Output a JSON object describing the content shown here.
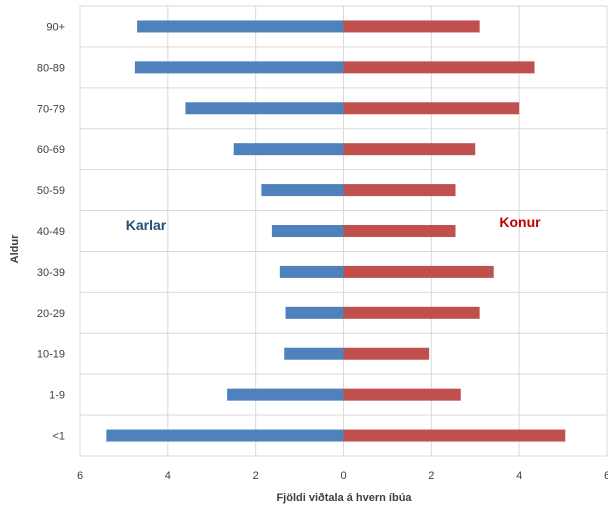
{
  "chart_data": {
    "type": "bar",
    "orientation": "horizontal",
    "layout": "population-pyramid",
    "categories": [
      "90+",
      "80-89",
      "70-79",
      "60-69",
      "50-59",
      "40-49",
      "30-39",
      "20-29",
      "10-19",
      "1-9",
      "<1"
    ],
    "series": [
      {
        "name": "Karlar",
        "side": "left",
        "color": "#4f81bd",
        "values": [
          4.7,
          4.75,
          3.6,
          2.5,
          1.87,
          1.63,
          1.45,
          1.32,
          1.35,
          2.65,
          5.4
        ]
      },
      {
        "name": "Konur",
        "side": "right",
        "color": "#c0504d",
        "values": [
          3.1,
          4.35,
          4.0,
          3.0,
          2.55,
          2.55,
          3.42,
          3.1,
          1.95,
          2.67,
          5.05
        ]
      }
    ],
    "group_labels": [
      {
        "text": "Karlar",
        "color": "#1f4e79"
      },
      {
        "text": "Konur",
        "color": "#c00000"
      }
    ],
    "xlabel": "Fjöldi viðtala á hvern íbúa",
    "ylabel": "Aldur",
    "xlim": [
      -6,
      6
    ],
    "x_ticks": [
      "6",
      "4",
      "2",
      "0",
      "2",
      "4",
      "6"
    ],
    "grid": true,
    "legend": "none"
  }
}
